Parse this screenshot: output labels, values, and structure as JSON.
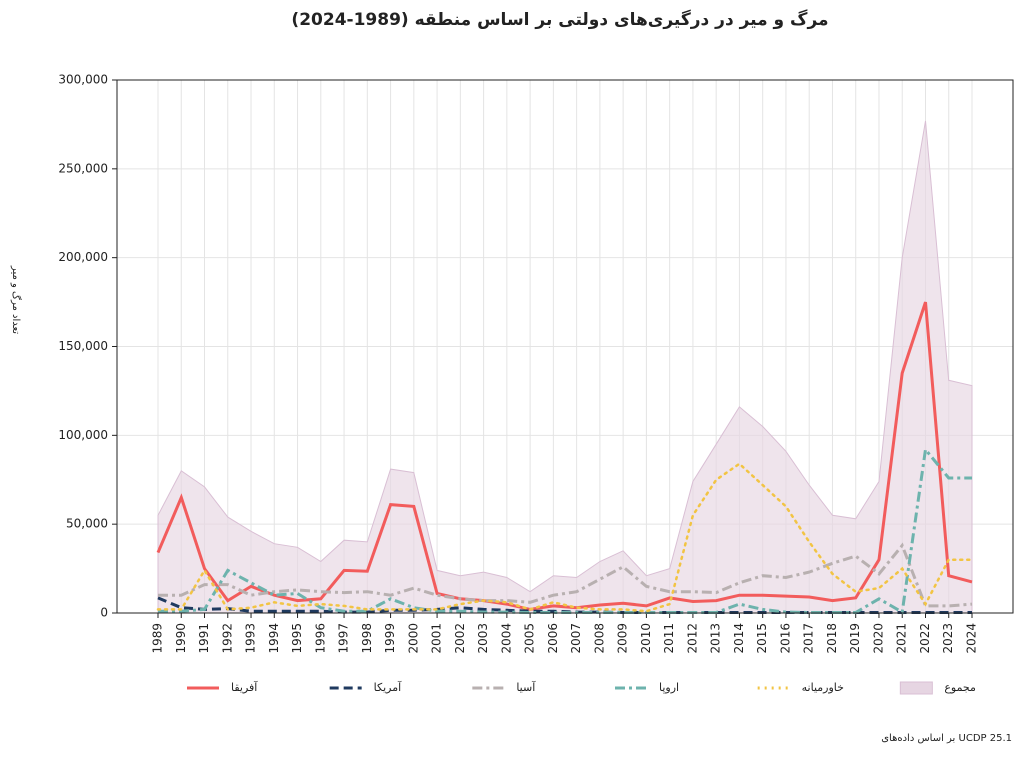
{
  "chart_data": {
    "type": "line",
    "title": "مرگ و میر در درگیری‌های دولتی بر اساس منطقه (1989-2024)",
    "ylabel": "تعداد مرگ و میر",
    "source": "بر اساس داده‌های UCDP 25.1",
    "x": [
      1989,
      1990,
      1991,
      1992,
      1993,
      1994,
      1995,
      1996,
      1997,
      1998,
      1999,
      2000,
      2001,
      2002,
      2003,
      2004,
      2005,
      2006,
      2007,
      2008,
      2009,
      2010,
      2011,
      2012,
      2013,
      2014,
      2015,
      2016,
      2017,
      2018,
      2019,
      2020,
      2021,
      2022,
      2023,
      2024
    ],
    "ylim": [
      0,
      300000
    ],
    "yticks": [
      0,
      {
        "value": 50000,
        "label": "50,000"
      },
      {
        "value": 100000,
        "label": "100,000"
      },
      {
        "value": 150000,
        "label": "150,000"
      },
      {
        "value": 200000,
        "label": "200,000"
      },
      {
        "value": 250000,
        "label": "250,000"
      },
      {
        "value": 300000,
        "label": "300,000"
      }
    ],
    "grid": true,
    "legend": "bottom",
    "series": [
      {
        "name": "آفریقا",
        "color": "#f25c5c",
        "style": "solid",
        "values": [
          34000,
          65000,
          25000,
          7000,
          15000,
          10000,
          7000,
          8000,
          24000,
          23500,
          61000,
          60000,
          11000,
          8000,
          7000,
          5000,
          2000,
          4000,
          3000,
          4500,
          5500,
          4000,
          8500,
          6500,
          7000,
          10000,
          10000,
          9500,
          9000,
          7000,
          8500,
          30000,
          135000,
          175000,
          21000,
          17500
        ]
      },
      {
        "name": "آمریکا",
        "color": "#1f3a5f",
        "style": "dashed",
        "values": [
          8500,
          3000,
          2000,
          2500,
          1000,
          1000,
          1000,
          1000,
          500,
          500,
          1500,
          1500,
          2000,
          3000,
          2000,
          1500,
          1000,
          1000,
          500,
          500,
          300,
          300,
          300,
          300,
          300,
          300,
          300,
          300,
          300,
          300,
          300,
          300,
          300,
          300,
          300,
          300
        ]
      },
      {
        "name": "آسیا",
        "color": "#b8b0b0",
        "style": "dashdot",
        "values": [
          10000,
          10000,
          16000,
          16000,
          10000,
          12000,
          13000,
          12000,
          11500,
          12000,
          10000,
          14000,
          10000,
          8000,
          7000,
          7000,
          6000,
          10000,
          12000,
          19000,
          26000,
          15000,
          12000,
          12000,
          11500,
          17000,
          21000,
          20000,
          23000,
          28000,
          32000,
          22000,
          38000,
          4000,
          4000,
          5000
        ]
      },
      {
        "name": "اروپا",
        "color": "#6db3ad",
        "style": "dashdot",
        "values": [
          1000,
          1000,
          2000,
          24000,
          17000,
          10000,
          11000,
          3000,
          1000,
          1000,
          8000,
          3000,
          1000,
          1000,
          500,
          500,
          300,
          300,
          300,
          300,
          300,
          300,
          300,
          300,
          300,
          5000,
          2000,
          500,
          300,
          300,
          300,
          8000,
          500,
          92000,
          76000,
          76000
        ]
      },
      {
        "name": "خاورمیانه",
        "color": "#f2c443",
        "style": "dotted",
        "values": [
          2000,
          2000,
          24000,
          2000,
          3000,
          6000,
          4000,
          5000,
          4000,
          2000,
          2000,
          2000,
          2000,
          5000,
          7000,
          6000,
          2000,
          6000,
          3000,
          2000,
          2000,
          1000,
          5000,
          55000,
          75000,
          84000,
          72000,
          60000,
          40000,
          22000,
          12000,
          14000,
          25000,
          5000,
          30000,
          30000
        ]
      },
      {
        "name": "مجموع",
        "color": "#e6d5e2",
        "style": "area",
        "values": [
          55000,
          80000,
          71000,
          54000,
          46000,
          39000,
          37000,
          29000,
          41000,
          40000,
          81000,
          79000,
          24000,
          21000,
          23000,
          20000,
          12000,
          21000,
          20000,
          29000,
          35000,
          21000,
          25000,
          74000,
          95000,
          116000,
          105000,
          91000,
          72000,
          55000,
          53000,
          74000,
          200000,
          277000,
          131000,
          128000
        ]
      }
    ]
  }
}
